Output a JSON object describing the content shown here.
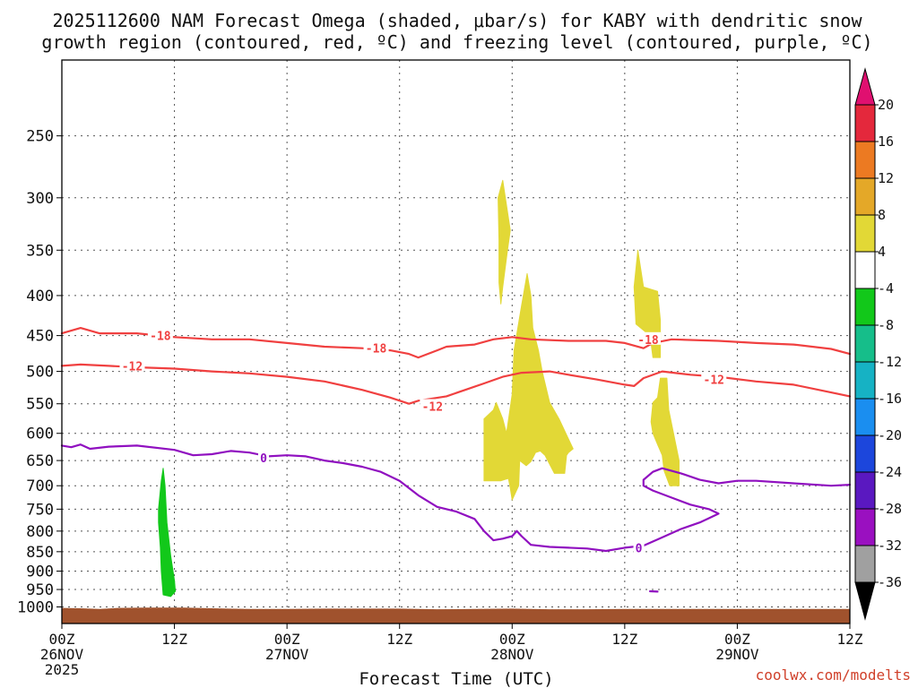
{
  "title_line1": "2025112600 NAM Forecast Omega (shaded, μbar/s) for KABY with dendritic snow",
  "title_line2": "growth region (contoured, red, ºC) and freezing level (contoured, purple, ºC)",
  "xlabel": "Forecast Time (UTC)",
  "credit": "coolwx.com/modelts",
  "chart_data": {
    "type": "time-height",
    "title": "2025112600 NAM Forecast Omega (shaded, μbar/s) for KABY with dendritic snow growth region (contoured, red, ºC) and freezing level (contoured, purple, ºC)",
    "xlabel": "Forecast Time (UTC)",
    "ylabel": "Pressure (hPa)",
    "x_unit": "forecast hour",
    "xlim": [
      0,
      84
    ],
    "ylim": [
      1050,
      200
    ],
    "x_ticks": [
      {
        "hour": 0,
        "time": "00Z",
        "date": "26NOV",
        "year": "2025"
      },
      {
        "hour": 12,
        "time": "12Z",
        "date": "",
        "year": ""
      },
      {
        "hour": 24,
        "time": "00Z",
        "date": "27NOV",
        "year": ""
      },
      {
        "hour": 36,
        "time": "12Z",
        "date": "",
        "year": ""
      },
      {
        "hour": 48,
        "time": "00Z",
        "date": "28NOV",
        "year": ""
      },
      {
        "hour": 60,
        "time": "12Z",
        "date": "",
        "year": ""
      },
      {
        "hour": 72,
        "time": "00Z",
        "date": "29NOV",
        "year": ""
      },
      {
        "hour": 84,
        "time": "12Z",
        "date": "",
        "year": ""
      }
    ],
    "y_ticks": [
      250,
      300,
      350,
      400,
      450,
      500,
      550,
      600,
      650,
      700,
      750,
      800,
      850,
      900,
      950,
      1000
    ],
    "colorbar": {
      "labels": [
        "20",
        "16",
        "12",
        "8",
        "4",
        "-4",
        "-8",
        "-12",
        "-16",
        "-20",
        "-24",
        "-28",
        "-32",
        "-36"
      ],
      "bins": [
        {
          "from": 20,
          "to": 16,
          "color": "#e4283c"
        },
        {
          "from": 16,
          "to": 12,
          "color": "#ec7a22"
        },
        {
          "from": 12,
          "to": 8,
          "color": "#e4a828"
        },
        {
          "from": 8,
          "to": 4,
          "color": "#e2d836"
        },
        {
          "from": 4,
          "to": -4,
          "color": "#ffffff"
        },
        {
          "from": -4,
          "to": -8,
          "color": "#12c81a"
        },
        {
          "from": -8,
          "to": -12,
          "color": "#16be8a"
        },
        {
          "from": -12,
          "to": -16,
          "color": "#16b2c4"
        },
        {
          "from": -16,
          "to": -20,
          "color": "#1a8ef0"
        },
        {
          "from": -20,
          "to": -24,
          "color": "#1c46dc"
        },
        {
          "from": -24,
          "to": -28,
          "color": "#5a18c0"
        },
        {
          "from": -28,
          "to": -32,
          "color": "#9a10c0"
        },
        {
          "from": -32,
          "to": -36,
          "color": "#a0a0a0"
        }
      ],
      "top_arrow_color": "#e01070",
      "bottom_arrow_color": "#000000"
    },
    "contours": [
      {
        "name": "-18",
        "label": "-18",
        "color": "#f04040",
        "label_points": [
          [
            10.5,
            450
          ],
          [
            33.5,
            467
          ],
          [
            62.5,
            455
          ]
        ],
        "points": [
          [
            0,
            447
          ],
          [
            2,
            440
          ],
          [
            4,
            447
          ],
          [
            8,
            447
          ],
          [
            12,
            452
          ],
          [
            16,
            455
          ],
          [
            20,
            455
          ],
          [
            24,
            460
          ],
          [
            28,
            465
          ],
          [
            32,
            467
          ],
          [
            35,
            470
          ],
          [
            37,
            475
          ],
          [
            38,
            480
          ],
          [
            40,
            470
          ],
          [
            41,
            465
          ],
          [
            44,
            462
          ],
          [
            46,
            455
          ],
          [
            48,
            452
          ],
          [
            50,
            455
          ],
          [
            54,
            457
          ],
          [
            58,
            457
          ],
          [
            60,
            460
          ],
          [
            62,
            467
          ],
          [
            63,
            460
          ],
          [
            65,
            455
          ],
          [
            70,
            457
          ],
          [
            74,
            460
          ],
          [
            78,
            462
          ],
          [
            82,
            468
          ],
          [
            84,
            475
          ]
        ]
      },
      {
        "name": "-12",
        "label": "-12",
        "color": "#f04040",
        "label_points": [
          [
            7.5,
            492
          ],
          [
            39.5,
            554
          ],
          [
            69.5,
            512
          ]
        ],
        "points": [
          [
            0,
            492
          ],
          [
            2,
            490
          ],
          [
            5,
            492
          ],
          [
            8,
            494
          ],
          [
            12,
            496
          ],
          [
            16,
            500
          ],
          [
            20,
            503
          ],
          [
            24,
            508
          ],
          [
            28,
            515
          ],
          [
            32,
            528
          ],
          [
            35,
            540
          ],
          [
            37,
            550
          ],
          [
            38,
            545
          ],
          [
            41,
            538
          ],
          [
            43,
            528
          ],
          [
            45,
            518
          ],
          [
            47,
            508
          ],
          [
            49,
            502
          ],
          [
            52,
            500
          ],
          [
            54,
            505
          ],
          [
            57,
            512
          ],
          [
            60,
            520
          ],
          [
            61,
            522
          ],
          [
            62,
            510
          ],
          [
            64,
            500
          ],
          [
            67,
            505
          ],
          [
            70,
            508
          ],
          [
            74,
            515
          ],
          [
            78,
            520
          ],
          [
            82,
            532
          ],
          [
            84,
            538
          ]
        ]
      },
      {
        "name": "0-main",
        "label": "0",
        "color": "#9010c0",
        "label_points": [
          [
            21.5,
            645
          ],
          [
            61.5,
            840
          ]
        ],
        "points": [
          [
            0,
            622
          ],
          [
            1,
            625
          ],
          [
            2,
            620
          ],
          [
            3,
            628
          ],
          [
            5,
            624
          ],
          [
            8,
            622
          ],
          [
            12,
            630
          ],
          [
            14,
            640
          ],
          [
            16,
            638
          ],
          [
            18,
            632
          ],
          [
            20,
            635
          ],
          [
            22,
            642
          ],
          [
            24,
            640
          ],
          [
            26,
            642
          ],
          [
            28,
            650
          ],
          [
            30,
            655
          ],
          [
            32,
            662
          ],
          [
            34,
            672
          ],
          [
            36,
            690
          ],
          [
            38,
            720
          ],
          [
            40,
            745
          ],
          [
            42,
            755
          ],
          [
            44,
            772
          ],
          [
            45,
            800
          ],
          [
            46,
            822
          ],
          [
            47,
            818
          ],
          [
            48,
            812
          ],
          [
            48.5,
            800
          ],
          [
            49,
            812
          ],
          [
            50,
            833
          ],
          [
            52,
            838
          ],
          [
            54,
            840
          ],
          [
            56,
            842
          ],
          [
            58,
            848
          ],
          [
            60,
            840
          ],
          [
            62,
            835
          ],
          [
            64,
            815
          ],
          [
            66,
            795
          ],
          [
            68,
            780
          ],
          [
            69,
            770
          ],
          [
            70,
            760
          ],
          [
            69,
            750
          ],
          [
            67,
            740
          ],
          [
            65,
            725
          ],
          [
            63,
            710
          ],
          [
            62,
            700
          ],
          [
            62,
            688
          ],
          [
            63,
            672
          ],
          [
            64,
            665
          ],
          [
            66,
            675
          ],
          [
            68,
            688
          ],
          [
            70,
            695
          ],
          [
            72,
            690
          ],
          [
            74,
            690
          ],
          [
            78,
            695
          ],
          [
            82,
            700
          ],
          [
            84,
            698
          ]
        ]
      },
      {
        "name": "0-blip",
        "label": "",
        "color": "#9010c0",
        "label_points": [],
        "points": [
          [
            62.7,
            955
          ],
          [
            63.5,
            956
          ]
        ]
      }
    ],
    "omega_regions": [
      {
        "name": "green-12Z-26NOV",
        "bin": "-4 to -8",
        "color": "#12c81a",
        "points": [
          [
            10.3,
            750
          ],
          [
            10.6,
            690
          ],
          [
            10.8,
            665
          ],
          [
            11.0,
            700
          ],
          [
            11.2,
            780
          ],
          [
            11.6,
            860
          ],
          [
            12.0,
            925
          ],
          [
            12.1,
            955
          ],
          [
            11.6,
            970
          ],
          [
            10.8,
            965
          ],
          [
            10.6,
            900
          ],
          [
            10.5,
            840
          ],
          [
            10.3,
            780
          ]
        ]
      },
      {
        "name": "yellow-upper-28NOV",
        "bin": "4 to 8",
        "color": "#e2d836",
        "points": [
          [
            46.5,
            300
          ],
          [
            47.0,
            285
          ],
          [
            47.8,
            330
          ],
          [
            47.5,
            350
          ],
          [
            47.0,
            390
          ],
          [
            46.8,
            410
          ],
          [
            46.6,
            385
          ],
          [
            46.6,
            340
          ]
        ]
      },
      {
        "name": "yellow-main-28NOV",
        "bin": "4 to 8",
        "color": "#e2d836",
        "points": [
          [
            45.0,
            575
          ],
          [
            46.0,
            560
          ],
          [
            46.3,
            548
          ],
          [
            47.0,
            575
          ],
          [
            47.4,
            600
          ],
          [
            48.0,
            535
          ],
          [
            48.2,
            470
          ],
          [
            49.0,
            412
          ],
          [
            49.6,
            375
          ],
          [
            50.0,
            400
          ],
          [
            50.2,
            440
          ],
          [
            50.8,
            470
          ],
          [
            51.2,
            500
          ],
          [
            52.0,
            548
          ],
          [
            53.0,
            575
          ],
          [
            54.0,
            610
          ],
          [
            54.5,
            628
          ],
          [
            54.0,
            635
          ],
          [
            53.8,
            640
          ],
          [
            53.6,
            675
          ],
          [
            52.5,
            675
          ],
          [
            51.8,
            650
          ],
          [
            51.5,
            640
          ],
          [
            51.0,
            632
          ],
          [
            50.5,
            635
          ],
          [
            50.0,
            652
          ],
          [
            49.5,
            660
          ],
          [
            48.8,
            650
          ],
          [
            48.7,
            700
          ],
          [
            48.0,
            730
          ],
          [
            47.8,
            705
          ],
          [
            47.6,
            685
          ],
          [
            46.8,
            690
          ],
          [
            46.0,
            690
          ],
          [
            45.0,
            690
          ],
          [
            45.0,
            640
          ]
        ]
      },
      {
        "name": "yellow-upper-29NOV",
        "bin": "4 to 8",
        "color": "#e2d836",
        "points": [
          [
            61.0,
            390
          ],
          [
            61.4,
            350
          ],
          [
            62.0,
            390
          ],
          [
            63.5,
            395
          ],
          [
            63.8,
            430
          ],
          [
            63.8,
            480
          ],
          [
            63.0,
            480
          ],
          [
            62.8,
            460
          ],
          [
            62.2,
            445
          ],
          [
            61.2,
            435
          ]
        ]
      },
      {
        "name": "yellow-lower-29NOV",
        "bin": "4 to 8",
        "color": "#e2d836",
        "points": [
          [
            62.8,
            580
          ],
          [
            63.0,
            548
          ],
          [
            63.5,
            540
          ],
          [
            63.8,
            510
          ],
          [
            64.5,
            510
          ],
          [
            64.7,
            560
          ],
          [
            65.2,
            600
          ],
          [
            65.8,
            650
          ],
          [
            65.8,
            700
          ],
          [
            64.8,
            700
          ],
          [
            64.2,
            670
          ],
          [
            64.0,
            640
          ],
          [
            63.5,
            620
          ],
          [
            63.0,
            600
          ]
        ]
      }
    ],
    "terrain": {
      "name": "surface-terrain",
      "color": "#a0522d",
      "points": [
        [
          0,
          1003
        ],
        [
          2,
          1004
        ],
        [
          4,
          1006
        ],
        [
          6,
          1003
        ],
        [
          9,
          1002
        ],
        [
          13,
          1002
        ],
        [
          16,
          1004
        ],
        [
          20,
          1006
        ],
        [
          24,
          1006
        ],
        [
          28,
          1005
        ],
        [
          32,
          1005
        ],
        [
          36,
          1005
        ],
        [
          40,
          1007
        ],
        [
          44,
          1006
        ],
        [
          48,
          1005
        ],
        [
          52,
          1007
        ],
        [
          56,
          1007
        ],
        [
          60,
          1006
        ],
        [
          64,
          1006
        ],
        [
          68,
          1006
        ],
        [
          72,
          1006
        ],
        [
          76,
          1006
        ],
        [
          80,
          1006
        ],
        [
          84,
          1006
        ]
      ]
    }
  }
}
